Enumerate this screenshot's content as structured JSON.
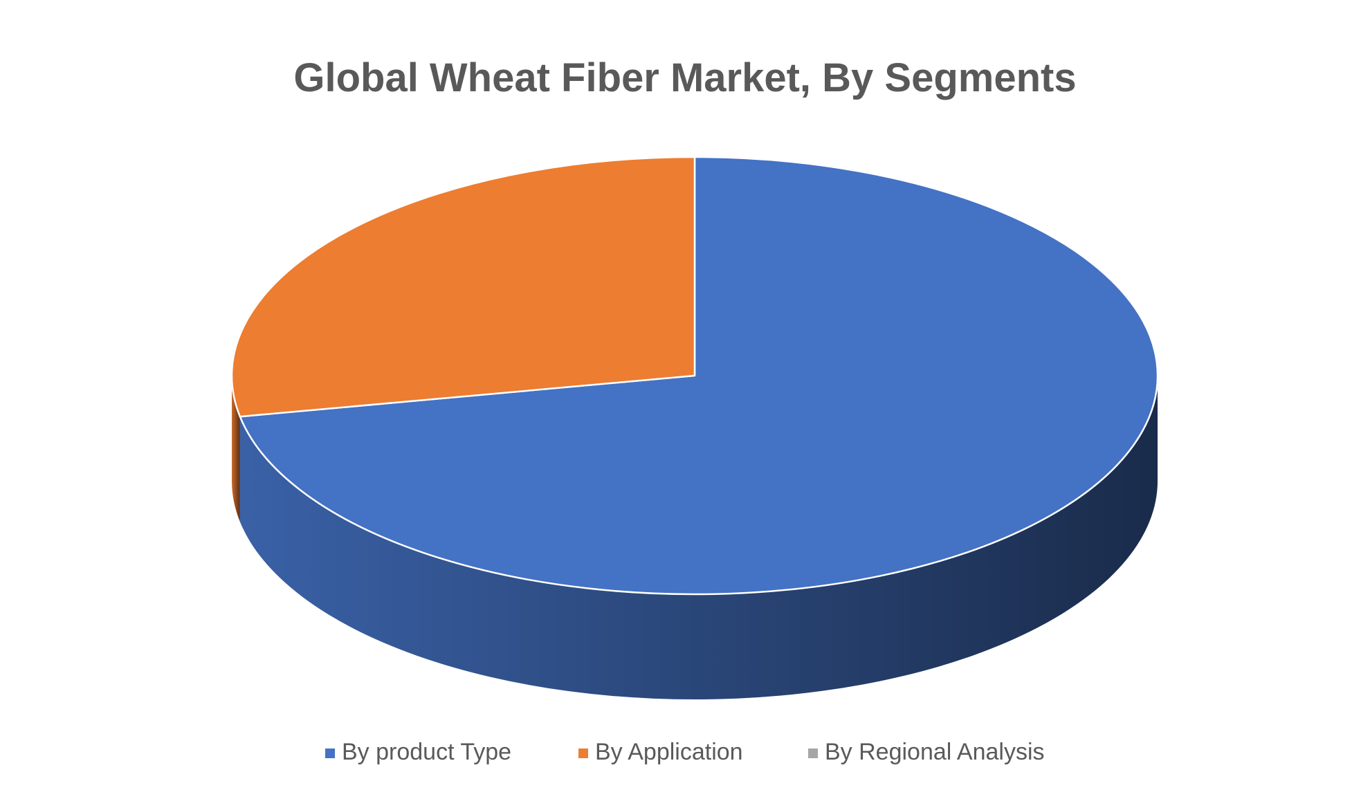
{
  "chart_data": {
    "type": "pie",
    "title": "Global Wheat Fiber Market, By Segments",
    "categories": [
      "By product Type",
      "By Application",
      "By Regional Analysis"
    ],
    "values": [
      72,
      28,
      0
    ],
    "colors": [
      "#4472c4",
      "#ed7d31",
      "#a5a5a5"
    ],
    "legend": "bottom"
  }
}
